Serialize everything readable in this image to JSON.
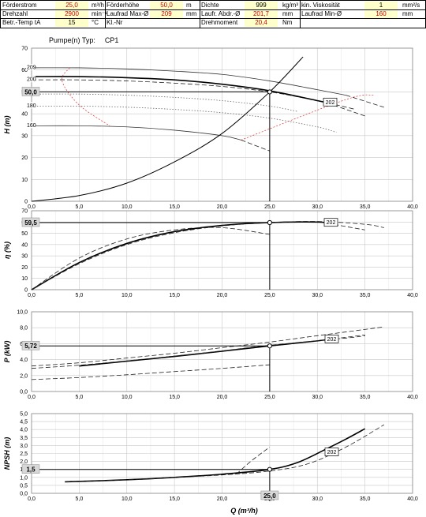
{
  "header": {
    "rows": [
      [
        {
          "label": "Förderstrom",
          "value": "25,0",
          "unit": "m³/h",
          "red": true
        },
        {
          "label": "Förderhöhe",
          "value": "50,0",
          "unit": "m",
          "red": true
        },
        {
          "label": "Dichte",
          "value": "999",
          "unit": "kg/m³",
          "red": false
        },
        {
          "label": "kin. Viskosität",
          "value": "1",
          "unit": "mm²/s",
          "red": false
        }
      ],
      [
        {
          "label": "Drehzahl",
          "value": "2900",
          "unit": "min⁻¹",
          "red": true
        },
        {
          "label": "Laufrad Max-Ø",
          "value": "209",
          "unit": "mm",
          "red": true
        },
        {
          "label": "Laufr. Abdr.-Ø",
          "value": "201,7",
          "unit": "mm",
          "red": true
        },
        {
          "label": "Laufrad Min-Ø",
          "value": "160",
          "unit": "mm",
          "red": true
        }
      ],
      [
        {
          "label": "Betr.-Temp tA",
          "value": "15",
          "unit": "°C",
          "red": false
        },
        {
          "label": "Kl.-Nr",
          "value": "",
          "unit": "",
          "red": false
        },
        {
          "label": "Drehmoment",
          "value": "20,4",
          "unit": "Nm",
          "red": true
        },
        {
          "label": "",
          "value": "",
          "unit": "",
          "red": false
        }
      ]
    ]
  },
  "pump": {
    "label": "Pumpe(n) Typ:",
    "type": "CP1"
  },
  "chart_data": [
    {
      "type": "line",
      "ylabel": "H (m)",
      "xlim": [
        0,
        40
      ],
      "ylim": [
        0,
        70
      ],
      "xticks": [
        "0,0",
        "5,0",
        "10,0",
        "15,0",
        "20,0",
        "25,0",
        "30,0",
        "35,0",
        "40,0"
      ],
      "yticks": [
        "0",
        "10",
        "20",
        "30",
        "40",
        "50",
        "60",
        "70"
      ],
      "operating_point": {
        "x": 25.0,
        "y": 50.0,
        "label": "50,0"
      },
      "curve_label": "202",
      "series": [
        {
          "name": "209",
          "style": "solid-thin",
          "x": [
            0,
            5,
            10,
            15,
            20,
            25,
            30,
            33
          ],
          "y": [
            61,
            61,
            60.5,
            59.5,
            58,
            55,
            51,
            48.5
          ]
        },
        {
          "name": "209",
          "style": "dash",
          "x": [
            33,
            37
          ],
          "y": [
            48.5,
            43
          ]
        },
        {
          "name": "200",
          "style": "dash",
          "x": [
            0,
            5,
            10,
            15,
            20,
            25,
            30,
            34
          ],
          "y": [
            55.5,
            55.5,
            55,
            54,
            52.5,
            50,
            46,
            42
          ]
        },
        {
          "name": "202",
          "style": "solid-bold",
          "x": [
            0,
            5,
            10,
            15,
            20,
            25,
            30,
            31
          ],
          "y": [
            57,
            57,
            56.5,
            55.5,
            53.5,
            50.5,
            46,
            45
          ]
        },
        {
          "name": "202",
          "style": "dash",
          "x": [
            31,
            35
          ],
          "y": [
            45,
            39
          ]
        },
        {
          "name": "180",
          "style": "dot",
          "x": [
            0,
            5,
            10,
            15,
            20,
            25,
            30,
            32
          ],
          "y": [
            43.5,
            43.5,
            43,
            42,
            40.5,
            38,
            34,
            31.5
          ]
        },
        {
          "name": "",
          "style": "dot",
          "x": [
            0,
            5,
            10,
            15,
            20,
            25,
            28
          ],
          "y": [
            49,
            49,
            48.5,
            47.5,
            46,
            43.5,
            41
          ]
        },
        {
          "name": "160",
          "style": "solid-thin",
          "x": [
            0,
            5,
            10,
            15,
            20,
            22
          ],
          "y": [
            34.5,
            34.5,
            34,
            32.5,
            30,
            28
          ]
        },
        {
          "name": "160",
          "style": "dash",
          "x": [
            22,
            25
          ],
          "y": [
            28,
            23
          ]
        },
        {
          "name": "system",
          "style": "solid",
          "x": [
            0,
            5,
            10,
            15,
            20,
            25,
            28.5
          ],
          "y": [
            0,
            2.6,
            8.3,
            18,
            31,
            50,
            66
          ]
        },
        {
          "name": "min-flow",
          "style": "red-dash",
          "x": [
            4,
            3.2,
            5,
            8.2
          ],
          "y": [
            61,
            55,
            44,
            34.5
          ]
        },
        {
          "name": "max-flow",
          "style": "red-dash",
          "x": [
            22,
            33,
            36
          ],
          "y": [
            28,
            46.5,
            48.5
          ]
        }
      ]
    },
    {
      "type": "line",
      "ylabel": "η (%)",
      "xlim": [
        0,
        40
      ],
      "ylim": [
        0,
        70
      ],
      "xticks": [
        "0,0",
        "5,0",
        "10,0",
        "15,0",
        "20,0",
        "25,0",
        "30,0",
        "35,0",
        "40,0"
      ],
      "yticks": [
        "0",
        "10",
        "20",
        "30",
        "40",
        "50",
        "60",
        "70"
      ],
      "operating_point": {
        "x": 25.0,
        "y": 59.5,
        "label": "59,5"
      },
      "curve_label": "202",
      "series": [
        {
          "name": "202",
          "style": "solid-bold",
          "x": [
            0,
            5,
            10,
            15,
            20,
            25,
            30,
            31
          ],
          "y": [
            0,
            24,
            41,
            51.5,
            57,
            59.5,
            60,
            59
          ]
        },
        {
          "name": "202",
          "style": "dash",
          "x": [
            31,
            35
          ],
          "y": [
            59,
            53
          ]
        },
        {
          "name": "209",
          "style": "dash",
          "x": [
            0,
            5,
            10,
            15,
            20,
            25,
            30,
            35,
            37
          ],
          "y": [
            0,
            23,
            40,
            50.5,
            56.5,
            59.5,
            60.5,
            58,
            55
          ]
        },
        {
          "name": "160",
          "style": "dash",
          "x": [
            0,
            5,
            10,
            15,
            20,
            25
          ],
          "y": [
            0,
            28,
            45,
            53,
            55,
            49
          ]
        }
      ]
    },
    {
      "type": "line",
      "ylabel": "P (kW)",
      "xlim": [
        0,
        40
      ],
      "ylim": [
        0,
        10
      ],
      "xticks": [
        "0,0",
        "5,0",
        "10,0",
        "15,0",
        "20,0",
        "25,0",
        "30,0",
        "35,0",
        "40,0"
      ],
      "yticks": [
        "0,0",
        "2,0",
        "4,0",
        "6,0",
        "8,0",
        "10,0"
      ],
      "operating_point": {
        "x": 25.0,
        "y": 5.72,
        "label": "5,72"
      },
      "curve_label": "202",
      "series": [
        {
          "name": "202",
          "style": "solid-bold",
          "x": [
            5,
            10,
            15,
            20,
            25,
            30,
            31
          ],
          "y": [
            3.2,
            3.8,
            4.4,
            5.05,
            5.72,
            6.35,
            6.5
          ]
        },
        {
          "name": "202",
          "style": "dash",
          "x": [
            31,
            35
          ],
          "y": [
            6.5,
            7.1
          ]
        },
        {
          "name": "209",
          "style": "dash",
          "x": [
            0,
            5,
            10,
            15,
            20,
            25,
            30,
            37
          ],
          "y": [
            3.2,
            3.6,
            4.2,
            4.8,
            5.5,
            6.2,
            7,
            8.1
          ]
        },
        {
          "name": "200",
          "style": "dash",
          "x": [
            0,
            5,
            10,
            15,
            20,
            25,
            33,
            35
          ],
          "y": [
            2.9,
            3.3,
            3.85,
            4.45,
            5.1,
            5.8,
            6.7,
            7
          ]
        },
        {
          "name": "160",
          "style": "dash",
          "x": [
            0,
            5,
            10,
            15,
            20,
            25
          ],
          "y": [
            1.5,
            1.75,
            2.1,
            2.5,
            2.9,
            3.35
          ]
        }
      ]
    },
    {
      "type": "line",
      "ylabel": "NPSH (m)",
      "xlabel": "Q (m³/h)",
      "xlim": [
        0,
        40
      ],
      "ylim": [
        0,
        5
      ],
      "xticks": [
        "0,0",
        "5,0",
        "10,0",
        "15,0",
        "20,0",
        "25,0",
        "30,0",
        "35,0",
        "40,0"
      ],
      "yticks": [
        "0,0",
        "0,5",
        "1,0",
        "1,5",
        "2,0",
        "2,5",
        "3,0",
        "3,5",
        "4,0",
        "4,5",
        "5,0"
      ],
      "operating_point": {
        "x": 25.0,
        "y": 1.5,
        "label": "1,5",
        "xlabel": "25,0"
      },
      "curve_label": "202",
      "series": [
        {
          "name": "202",
          "style": "solid-bold",
          "x": [
            3.5,
            10,
            15,
            20,
            25,
            28,
            31,
            33,
            35
          ],
          "y": [
            0.72,
            0.85,
            1.0,
            1.2,
            1.5,
            1.95,
            2.8,
            3.4,
            4.05
          ]
        },
        {
          "name": "209",
          "style": "dash",
          "x": [
            3.5,
            10,
            15,
            20,
            25,
            29,
            33,
            37
          ],
          "y": [
            0.72,
            0.85,
            1.0,
            1.15,
            1.4,
            1.85,
            2.9,
            4.3
          ]
        },
        {
          "name": "160",
          "style": "dash",
          "x": [
            21.5,
            23,
            25
          ],
          "y": [
            1.2,
            2.0,
            2.9
          ]
        }
      ]
    }
  ]
}
